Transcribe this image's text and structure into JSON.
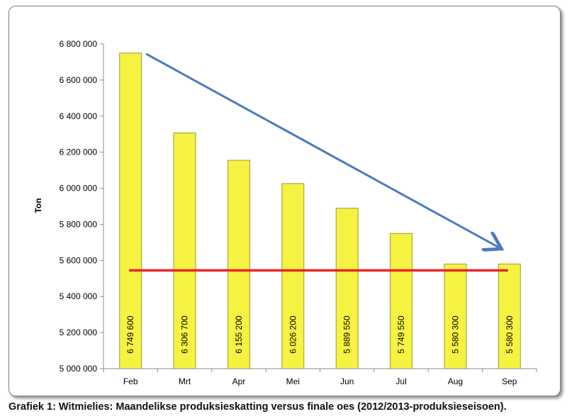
{
  "chart_data": {
    "type": "bar",
    "ylabel": "Ton",
    "categories": [
      "Feb",
      "Mrt",
      "Apr",
      "Mei",
      "Jun",
      "Jul",
      "Aug",
      "Sep"
    ],
    "values": [
      6749600,
      6306700,
      6155200,
      6026200,
      5889550,
      5749550,
      5580300,
      5580300
    ],
    "value_labels": [
      "6 749 600",
      "6 306 700",
      "6 155 200",
      "6 026 200",
      "5 889 550",
      "5 749 550",
      "5 580 300",
      "5 580 300"
    ],
    "ylim": [
      5000000,
      6800000
    ],
    "yticks": [
      5000000,
      5200000,
      5400000,
      5600000,
      5800000,
      6000000,
      6200000,
      6400000,
      6600000,
      6800000
    ],
    "ytick_labels": [
      "5 000 000",
      "5 200 000",
      "5 400 000",
      "5 600 000",
      "5 800 000",
      "6 000 000",
      "6 200 000",
      "6 400 000",
      "6 600 000",
      "6 800 000"
    ],
    "grid": false,
    "reference_line": {
      "value": 5545000,
      "color": "#e8262b"
    },
    "trend_arrow": {
      "from": [
        "Feb",
        6745000
      ],
      "to": [
        "Sep",
        5670000
      ],
      "color": "#4a7bbf"
    },
    "bar_color": "#f5f242",
    "bar_edge_color": "#9a9a36"
  },
  "caption": "Grafiek 1: Witmielies: Maandelikse produksieskatting versus finale oes (2012/2013-produksieseisoen)."
}
